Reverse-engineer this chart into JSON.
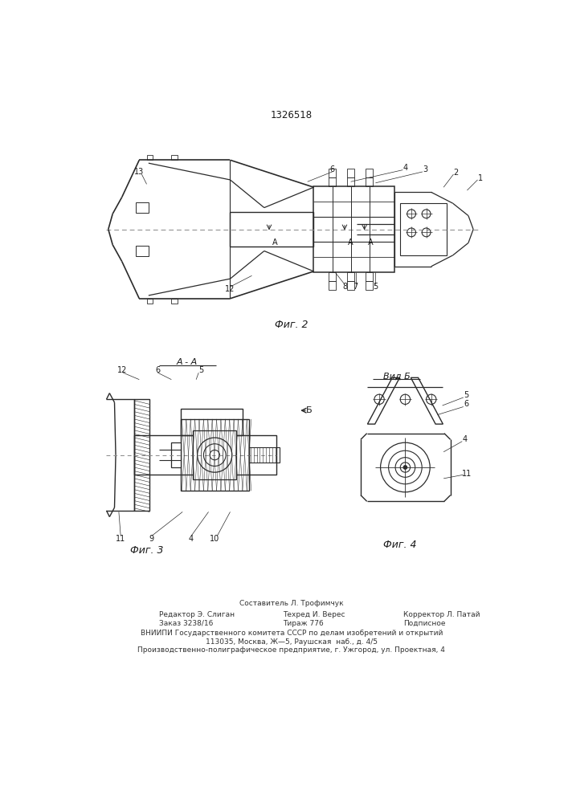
{
  "patent_number": "1326518",
  "fig2_caption": "Фиг. 2",
  "fig3_caption": "Фиг. 3",
  "fig4_caption": "Фиг. 4",
  "section_label": "А - А",
  "view_label": "Вид Б",
  "arrow_b": "Б",
  "label_A": "А",
  "footer_line1": "Составитель Л. Трофимчук",
  "footer_line2_col1": "Редактор Э. Слиган",
  "footer_line2_col2": "Техред И. Верес",
  "footer_line2_col3": "Корректор Л. Патай",
  "footer_line3_col1": "Заказ 3238/16",
  "footer_line3_col2": "Тираж 776",
  "footer_line3_col3": "Подписное",
  "footer_line4": "ВНИИПИ Государственного комитета СССР по делам изобретений и открытий",
  "footer_line5": "113035, Москва, Ж—5, Раушская  наб., д. 4/5",
  "footer_line6": "Производственно-полиграфическое предприятие, г. Ужгород, ул. Проектная, 4",
  "bg_color": "#ffffff",
  "line_color": "#2a2a2a",
  "text_color": "#1a1a1a"
}
